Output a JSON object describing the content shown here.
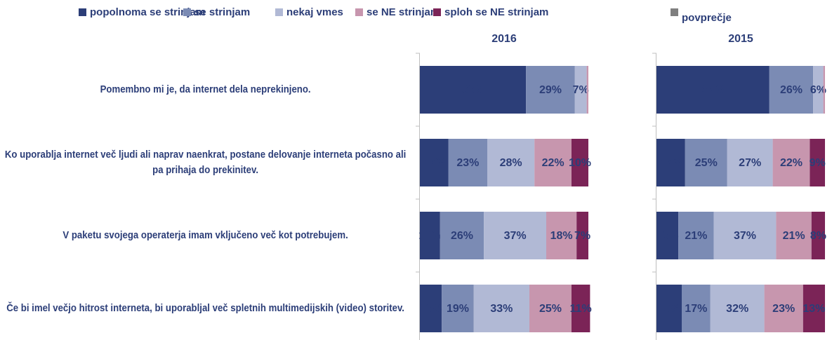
{
  "chart_data": {
    "type": "bar",
    "orientation": "horizontal",
    "stacked": true,
    "categories": [
      "Pomembno mi je, da internet dela neprekinjeno.",
      "Ko uporablja internet več ljudi ali naprav naenkrat, postane delovanje interneta počasno ali pa prihaja do prekinitev.",
      "V paketu svojega operaterja imam vključeno več kot potrebujem.",
      "Če bi imel večjo hitrost interneta, bi uporabljal več spletnih multimedijskih (video) storitev."
    ],
    "series": [
      {
        "name": "popolnoma se strinjam",
        "color": "#2c3e78",
        "label_color": "#ffffff"
      },
      {
        "name": "se strinjam",
        "color": "#7b8bb4",
        "label_color": "#2c3e78"
      },
      {
        "name": "nekaj vmes",
        "color": "#b1b9d5",
        "label_color": "#2c3e78"
      },
      {
        "name": "se NE strinjam",
        "color": "#c796ae",
        "label_color": "#ffffff"
      },
      {
        "name": "sploh se NE strinjam",
        "color": "#7b2457",
        "label_color": "#ffffff"
      },
      {
        "name": "povprečje",
        "color": "#7f7f7f"
      }
    ],
    "xlim": [
      0,
      100
    ],
    "panels": [
      {
        "title": "2016",
        "values": [
          [
            63,
            29,
            7,
            1,
            0
          ],
          [
            17,
            23,
            28,
            22,
            10
          ],
          [
            12,
            26,
            37,
            18,
            7
          ],
          [
            13,
            19,
            33,
            25,
            11
          ]
        ],
        "value_labels": [
          [
            "63%",
            "29%",
            "7%",
            null,
            null
          ],
          [
            "17%",
            "23%",
            "28%",
            "22%",
            "10%"
          ],
          [
            "12%",
            "26%",
            "37%",
            "18%",
            "7%"
          ],
          [
            "13%",
            "19%",
            "33%",
            "25%",
            "11%"
          ]
        ]
      },
      {
        "title": "2015",
        "values": [
          [
            67,
            26,
            6,
            1,
            0
          ],
          [
            17,
            25,
            27,
            22,
            9
          ],
          [
            13,
            21,
            37,
            21,
            8
          ],
          [
            15,
            17,
            32,
            23,
            13
          ]
        ],
        "value_labels": [
          [
            "67%",
            "26%",
            "6%",
            null,
            null
          ],
          [
            "17%",
            "25%",
            "27%",
            "22%",
            "9%"
          ],
          [
            "13%",
            "21%",
            "37%",
            "21%",
            "8%"
          ],
          [
            "15%",
            "17%",
            "32%",
            "23%",
            "13%"
          ]
        ]
      }
    ]
  }
}
